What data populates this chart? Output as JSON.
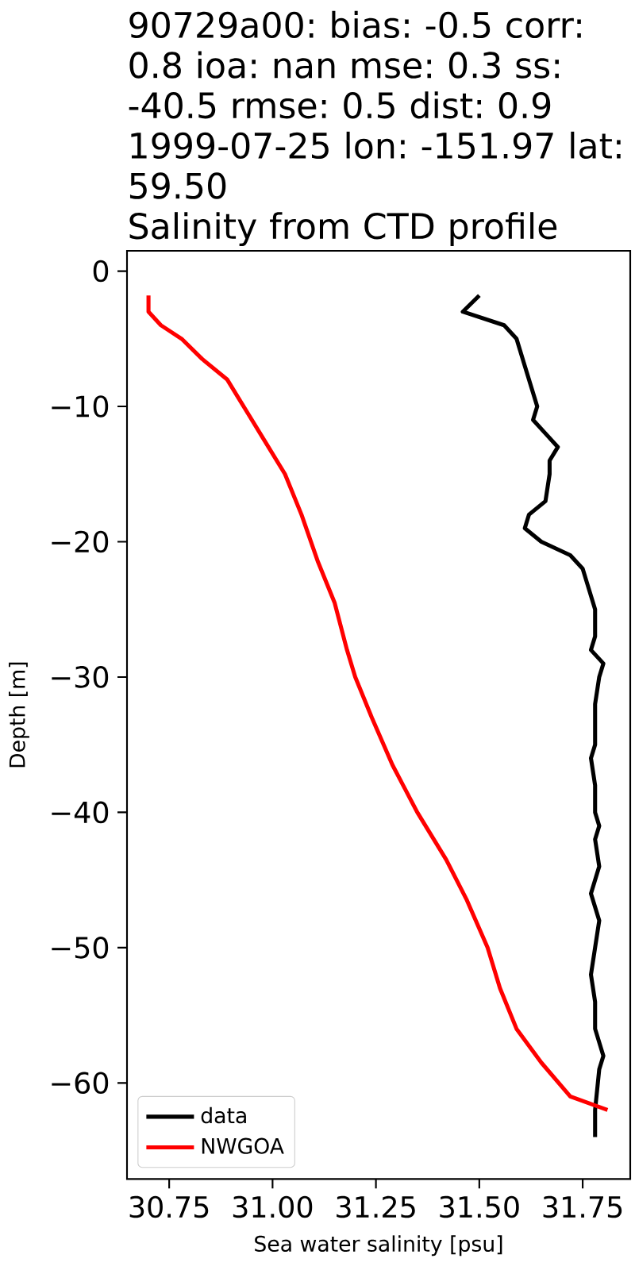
{
  "chart_data": {
    "type": "line",
    "title": "90729a00: bias: -0.5  corr: 0.8  ioa: nan  mse: 0.3  ss: -40.5  rmse: 0.5  dist: 0.9 1999-07-25 lon: -151.97 lat: 59.50",
    "subtitle": "Salinity from CTD profile",
    "xlabel": "Sea water salinity [psu]",
    "ylabel": "Depth [m]",
    "xlim": [
      30.648,
      31.865
    ],
    "ylim": [
      -67.1,
      1.5
    ],
    "xticks": [
      30.75,
      {
        "value": 31.0,
        "label": "31.00"
      },
      31.25,
      {
        "value": 31.5,
        "label": "31.50"
      },
      31.75
    ],
    "yticks": [
      0,
      {
        "value": -10,
        "label": "−10"
      },
      {
        "value": -20,
        "label": "−20"
      },
      {
        "value": -30,
        "label": "−30"
      },
      {
        "value": -40,
        "label": "−40"
      },
      {
        "value": -50,
        "label": "−50"
      },
      {
        "value": -60,
        "label": "−60"
      }
    ],
    "legend": "bottom left",
    "series": [
      {
        "name": "data",
        "color": "#000000",
        "x": [
          31.5,
          31.46,
          31.56,
          31.59,
          31.61,
          31.63,
          31.64,
          31.63,
          31.66,
          31.69,
          31.67,
          31.67,
          31.66,
          31.62,
          31.61,
          31.65,
          31.72,
          31.75,
          31.76,
          31.78,
          31.78,
          31.77,
          31.8,
          31.79,
          31.78,
          31.78,
          31.77,
          31.78,
          31.78,
          31.79,
          31.78,
          31.79,
          31.77,
          31.79,
          31.78,
          31.77,
          31.78,
          31.78,
          31.8,
          31.79,
          31.78,
          31.78
        ],
        "values": [
          -1.8,
          -3,
          -4,
          -5,
          -7,
          -9,
          -10,
          -11,
          -12,
          -13,
          -14,
          -15,
          -17,
          -18,
          -19,
          -20,
          -21,
          -22,
          -23,
          -25,
          -27,
          -28,
          -29,
          -30,
          -32,
          -35,
          -36,
          -38,
          -40,
          -41,
          -42,
          -44,
          -46,
          -48,
          -50,
          -52,
          -54,
          -56,
          -58,
          -59,
          -62,
          -64
        ]
      },
      {
        "name": "NWGOA",
        "color": "#ff0000",
        "x": [
          30.7,
          30.7,
          30.73,
          30.78,
          30.83,
          30.89,
          30.94,
          30.98,
          31.03,
          31.07,
          31.11,
          31.15,
          31.18,
          31.2,
          31.24,
          31.29,
          31.35,
          31.42,
          31.47,
          31.52,
          31.55,
          31.59,
          31.65,
          31.72,
          31.81
        ],
        "values": [
          -1.8,
          -3,
          -4,
          -5,
          -6.5,
          -8,
          -10.5,
          -12.5,
          -15,
          -18,
          -21.5,
          -24.5,
          -28,
          -30,
          -33,
          -36.5,
          -40,
          -43.5,
          -46.5,
          -50,
          -53,
          -56,
          -58.5,
          -61,
          -62
        ]
      }
    ]
  }
}
